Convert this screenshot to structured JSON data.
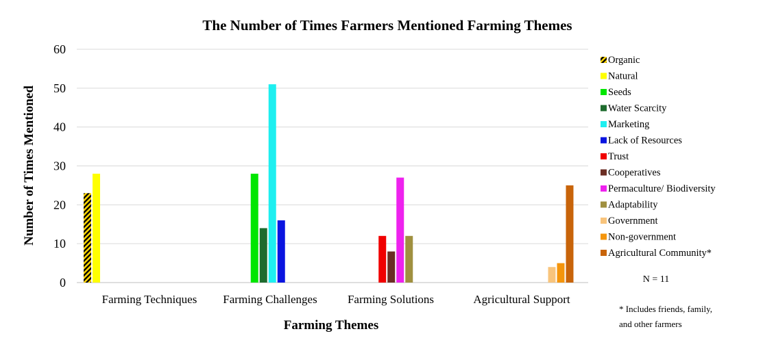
{
  "chart_data": {
    "type": "bar",
    "title": "The Number of Times Farmers Mentioned Farming Themes",
    "xlabel": "Farming Themes",
    "ylabel": "Number of Times  Mentioned",
    "ylim": [
      0,
      60
    ],
    "yticks": [
      0,
      10,
      20,
      30,
      40,
      50,
      60
    ],
    "grid": true,
    "legend_position": "right",
    "categories": [
      "Farming Techniques",
      "Farming Challenges",
      "Farming Solutions",
      "Agricultural Support"
    ],
    "series": [
      {
        "name": "Organic",
        "color": "#FFD700",
        "pattern": "hatched",
        "category": "Farming Techniques",
        "value": 23
      },
      {
        "name": "Natural",
        "color": "#FFFF00",
        "category": "Farming Techniques",
        "value": 28
      },
      {
        "name": "Seeds",
        "color": "#00E600",
        "category": "Farming Challenges",
        "value": 28
      },
      {
        "name": "Water Scarcity",
        "color": "#1E6B2E",
        "category": "Farming Challenges",
        "value": 14
      },
      {
        "name": "Marketing",
        "color": "#1EEFF0",
        "category": "Farming Challenges",
        "value": 51
      },
      {
        "name": "Lack of Resources",
        "color": "#0A14E0",
        "category": "Farming Challenges",
        "value": 16
      },
      {
        "name": "Trust",
        "color": "#F00000",
        "category": "Farming Solutions",
        "value": 12
      },
      {
        "name": "Cooperatives",
        "color": "#6B2E24",
        "category": "Farming Solutions",
        "value": 8
      },
      {
        "name": "Permaculture/ Biodiversity",
        "color": "#EE22EE",
        "category": "Farming Solutions",
        "value": 27
      },
      {
        "name": "Adaptability",
        "color": "#A09040",
        "category": "Farming Solutions",
        "value": 12
      },
      {
        "name": "Government",
        "color": "#F8C47C",
        "category": "Agricultural Support",
        "value": 4
      },
      {
        "name": "Non-government",
        "color": "#F4950C",
        "category": "Agricultural Support",
        "value": 5
      },
      {
        "name": "Agricultural Community*",
        "color": "#C8640A",
        "category": "Agricultural Support",
        "value": 25
      }
    ],
    "annotations": {
      "n": "N = 11",
      "footnote": [
        "* Includes friends, family,",
        "and other farmers"
      ]
    }
  }
}
